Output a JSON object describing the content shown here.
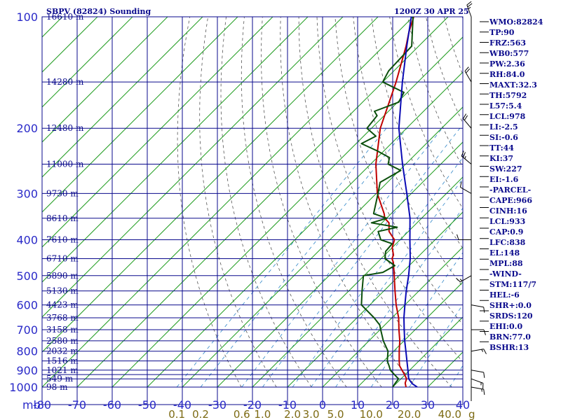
{
  "title_left": "SBPV (82824) Sounding",
  "title_right": "1200Z 30 APR 25",
  "colors": {
    "background": "#ffffff",
    "isobar_grid": "#0a0a8c",
    "isotherm_grid": "#1f9c1f",
    "dry_adiabat": "#555555",
    "mixing_ratio": "#2f86c8",
    "temperature": "#c00000",
    "dewpoint": "#0b4f0b",
    "parcel": "#0a0ab4",
    "axis_labels": "#2a2ac8",
    "mixing_ratio_labels": "#7d6b14"
  },
  "chart_data": {
    "type": "line",
    "subtype": "skew-T log-P sounding",
    "x_axis": {
      "unit_label": "°C",
      "ticks": [
        -80,
        -70,
        -60,
        -50,
        -40,
        -30,
        -20,
        -10,
        0,
        10,
        20,
        30,
        40
      ],
      "tick_labels": [
        "-80",
        "-70",
        "-60",
        "-50",
        "-40",
        "-30",
        "-20",
        "-10",
        "0",
        "10",
        "20",
        "30",
        "40"
      ],
      "range": [
        -80,
        40
      ]
    },
    "y_axis": {
      "unit_label": "mb",
      "scale": "log",
      "range": [
        1000,
        100
      ],
      "ticks": [
        100,
        200,
        300,
        400,
        500,
        600,
        700,
        800,
        900,
        1000
      ],
      "tick_labels": [
        "100",
        "200",
        "300",
        "400",
        "500",
        "600",
        "700",
        "800",
        "900",
        "1000"
      ]
    },
    "isobars": [
      100,
      150,
      200,
      250,
      300,
      350,
      400,
      450,
      500,
      550,
      600,
      650,
      700,
      750,
      800,
      850,
      900,
      925,
      950,
      1000
    ],
    "height_labels": [
      {
        "p": 100,
        "text": "16610 m"
      },
      {
        "p": 150,
        "text": "14280 m"
      },
      {
        "p": 200,
        "text": "12480 m"
      },
      {
        "p": 250,
        "text": "11000 m"
      },
      {
        "p": 300,
        "text": "9730 m"
      },
      {
        "p": 350,
        "text": "8610 m"
      },
      {
        "p": 400,
        "text": "7610 m"
      },
      {
        "p": 450,
        "text": "6710 m"
      },
      {
        "p": 500,
        "text": "5890 m"
      },
      {
        "p": 550,
        "text": "5130 m"
      },
      {
        "p": 600,
        "text": "4423 m"
      },
      {
        "p": 650,
        "text": "3768 m"
      },
      {
        "p": 700,
        "text": "3158 m"
      },
      {
        "p": 750,
        "text": "2580 m"
      },
      {
        "p": 800,
        "text": "2032 m"
      },
      {
        "p": 850,
        "text": "1516 m"
      },
      {
        "p": 900,
        "text": "1021 m"
      },
      {
        "p": 950,
        "text": "549 m"
      },
      {
        "p": 1000,
        "text": "98 m"
      }
    ],
    "mixing_ratio_labels": [
      "0.1",
      "0.2",
      "0.6",
      "1.0",
      "2.0",
      "3.0",
      "5.0",
      "10.0",
      "20.0",
      "40.0"
    ],
    "mixing_ratio_unit": "g",
    "series": [
      {
        "id": "temperature",
        "p": [
          1000,
          975,
          950,
          925,
          900,
          875,
          850,
          800,
          750,
          700,
          650,
          600,
          550,
          500,
          480,
          460,
          450,
          440,
          420,
          400,
          380,
          360,
          350,
          340,
          300,
          250,
          200,
          150,
          120,
          110,
          100
        ],
        "t": [
          23.8,
          22.4,
          21.6,
          19.8,
          17.8,
          15.8,
          14.4,
          11.6,
          8.8,
          5.4,
          1.9,
          -2.5,
          -6.8,
          -11.4,
          -13.4,
          -15.5,
          -16.9,
          -17.5,
          -20.0,
          -21.6,
          -25.5,
          -28.0,
          -30.5,
          -32.0,
          -39.7,
          -48.5,
          -57.5,
          -66.2,
          -73.6,
          -76.8,
          -79.8
        ]
      },
      {
        "id": "dewpoint",
        "p": [
          1000,
          975,
          950,
          925,
          900,
          875,
          850,
          800,
          750,
          700,
          680,
          650,
          600,
          550,
          500,
          490,
          470,
          450,
          430,
          410,
          400,
          380,
          370,
          360,
          350,
          340,
          300,
          280,
          260,
          250,
          240,
          230,
          220,
          210,
          200,
          185,
          180,
          170,
          160,
          150,
          140,
          120,
          100
        ],
        "t": [
          20.0,
          19.6,
          19.3,
          16.9,
          14.5,
          12.8,
          11.0,
          8.4,
          4.1,
          0.2,
          -1.4,
          -5.1,
          -12.4,
          -16.2,
          -20.2,
          -15.6,
          -14.1,
          -18.9,
          -20.8,
          -21.1,
          -25.5,
          -28.6,
          -24.4,
          -33.0,
          -29.9,
          -35.0,
          -39.5,
          -42.1,
          -39.6,
          -45.0,
          -46.5,
          -52.0,
          -58.5,
          -56.5,
          -61.3,
          -62.0,
          -64.0,
          -59.7,
          -61.0,
          -70.0,
          -71.5,
          -72.0,
          -80.0
        ]
      },
      {
        "id": "parcel",
        "p": [
          1000,
          978,
          950,
          900,
          850,
          800,
          750,
          700,
          650,
          600,
          550,
          500,
          450,
          400,
          350,
          300,
          250,
          200,
          150,
          120,
          100
        ],
        "t": [
          27.0,
          24.5,
          22.2,
          19.5,
          16.6,
          13.5,
          10.2,
          6.9,
          3.4,
          0.0,
          -3.6,
          -7.3,
          -11.7,
          -17.2,
          -23.3,
          -31.3,
          -40.9,
          -52.2,
          -64.4,
          -73.4,
          -80.5
        ]
      }
    ],
    "wind_barbs": [
      {
        "p": 1000,
        "dir": 100,
        "spd": 5
      },
      {
        "p": 950,
        "dir": 110,
        "spd": 5
      },
      {
        "p": 900,
        "dir": 100,
        "spd": 10
      },
      {
        "p": 800,
        "dir": 80,
        "spd": 5
      },
      {
        "p": 700,
        "dir": 90,
        "spd": 10
      },
      {
        "p": 600,
        "dir": 100,
        "spd": 10
      },
      {
        "p": 500,
        "dir": 240,
        "spd": 5
      },
      {
        "p": 400,
        "dir": 270,
        "spd": 10
      },
      {
        "p": 300,
        "dir": 300,
        "spd": 10
      },
      {
        "p": 250,
        "dir": 310,
        "spd": 15
      },
      {
        "p": 200,
        "dir": 320,
        "spd": 20
      },
      {
        "p": 150,
        "dir": 330,
        "spd": 20
      },
      {
        "p": 100,
        "dir": 340,
        "spd": 15
      }
    ]
  },
  "indices": [
    "WMO:82824",
    "TP:90",
    "FRZ:563",
    "WB0:577",
    "PW:2.36",
    "RH:84.0",
    "MAXT:32.3",
    "TH:5792",
    "L57:5.4",
    "LCL:978",
    "LI:-2.5",
    "SI:-0.6",
    "TT:44",
    "KI:37",
    "SW:227",
    "EI:-1.6",
    "-PARCEL-",
    "CAPE:966",
    "CINH:16",
    "LCL:933",
    "CAP:0.9",
    "LFC:838",
    "EL:148",
    "MPL:88",
    "-WIND-",
    "STM:117/7",
    "HEL:-6",
    "SHR+:0.0",
    "SRDS:120",
    "EHI:0.0",
    "BRN:77.0",
    "BSHR:13"
  ]
}
